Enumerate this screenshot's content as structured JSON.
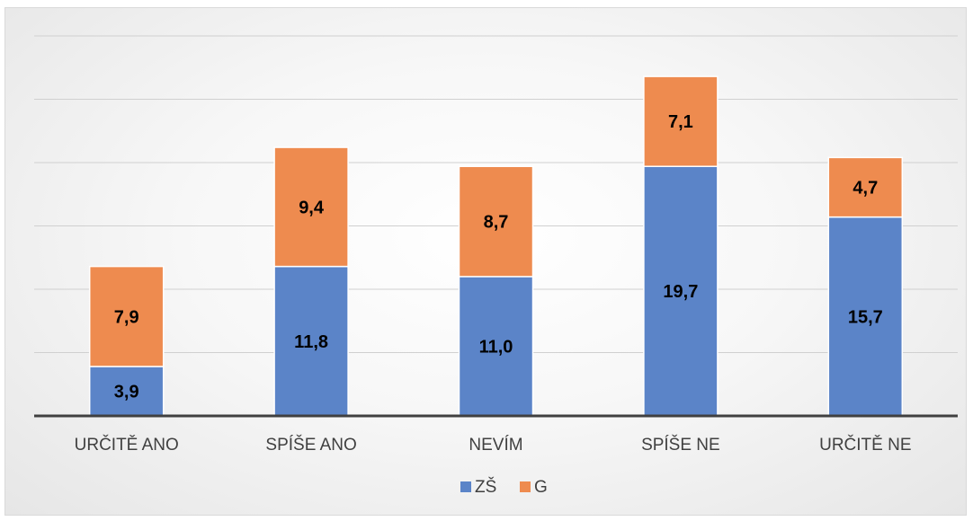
{
  "chart_data": {
    "type": "bar",
    "stacked": true,
    "categories": [
      "URČITĚ ANO",
      "SPÍŠE ANO",
      "NEVÍM",
      "SPÍŠE NE",
      "URČITĚ NE"
    ],
    "series": [
      {
        "name": "ZŠ",
        "values": [
          3.9,
          11.8,
          11.0,
          19.7,
          15.7
        ],
        "color": "#5b84c8"
      },
      {
        "name": "G",
        "values": [
          7.9,
          9.4,
          8.7,
          7.1,
          4.7
        ],
        "color": "#ee8b4f"
      }
    ],
    "ylim": [
      0,
      30
    ],
    "grid": true,
    "legend": "bottom",
    "y_axis_labels_shown": false
  }
}
